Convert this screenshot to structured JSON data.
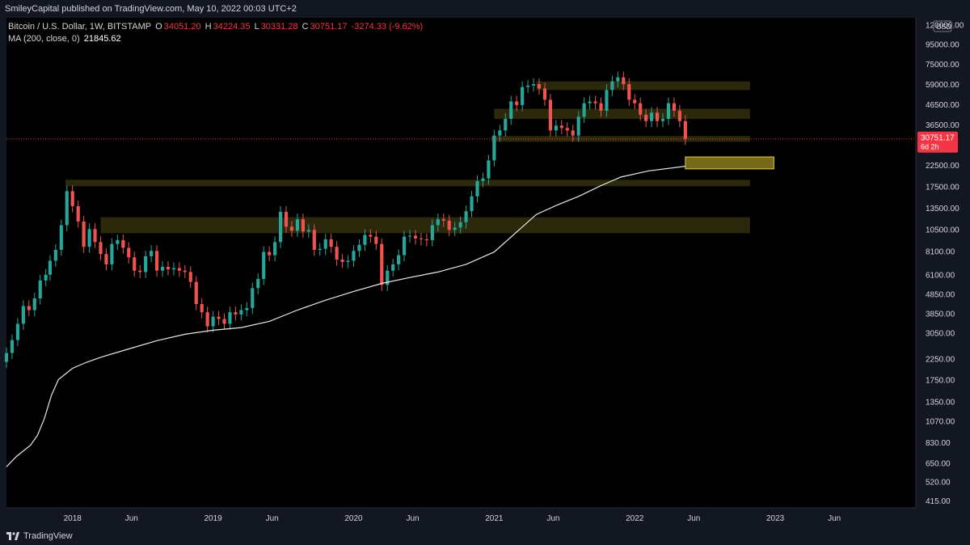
{
  "header": {
    "published": "SmileyCapital published on TradingView.com, May 10, 2022 00:03 UTC+2"
  },
  "legend": {
    "symbol": "Bitcoin / U.S. Dollar, 1W, BITSTAMP",
    "o_label": "O",
    "o": "34051.20",
    "h_label": "H",
    "h": "34224.35",
    "l_label": "L",
    "l": "30331.28",
    "c_label": "C",
    "c": "30751.17",
    "change": "-3274.33 (-9.62%)",
    "ma_label": "MA (200, close, 0)",
    "ma_value": "21845.62"
  },
  "footer": {
    "brand": "TradingView"
  },
  "colors": {
    "background": "#000000",
    "up": "#26a69a",
    "down": "#ef5350",
    "ma": "#e8e8e8",
    "zone": "#3a3510",
    "zone_highlight": "#8a7d1e",
    "price_tag": "#f23645"
  },
  "chart_data": {
    "type": "candlestick",
    "title": "Bitcoin / U.S. Dollar, 1W, BITSTAMP",
    "scale": "log",
    "ylim": [
      380,
      130000
    ],
    "currency": "USD",
    "y_ticks": [
      120000,
      95000,
      75000,
      59000,
      46500,
      36500,
      30751.17,
      22500,
      17500,
      13500,
      10500,
      8100,
      6100,
      4850,
      3850,
      3050,
      2250,
      1750,
      1350,
      1070,
      830,
      650,
      520,
      415
    ],
    "y_tick_labels": [
      "120000.00",
      "95000.00",
      "75000.00",
      "59000.00",
      "46500.00",
      "36500.00",
      "",
      "22500.00",
      "17500.00",
      "13500.00",
      "10500.00",
      "8100.00",
      "6100.00",
      "4850.00",
      "3850.00",
      "3050.00",
      "2250.00",
      "1750.00",
      "1350.00",
      "1070.00",
      "830.00",
      "650.00",
      "520.00",
      "415.00"
    ],
    "x_ticks": [
      {
        "t": 2018.0,
        "label": "2018"
      },
      {
        "t": 2018.42,
        "label": "Jun"
      },
      {
        "t": 2019.0,
        "label": "2019"
      },
      {
        "t": 2019.42,
        "label": "Jun"
      },
      {
        "t": 2020.0,
        "label": "2020"
      },
      {
        "t": 2020.42,
        "label": "Jun"
      },
      {
        "t": 2021.0,
        "label": "2021"
      },
      {
        "t": 2021.42,
        "label": "Jun"
      },
      {
        "t": 2022.0,
        "label": "2022"
      },
      {
        "t": 2022.42,
        "label": "Jun"
      },
      {
        "t": 2023.0,
        "label": "2023"
      },
      {
        "t": 2023.42,
        "label": "Jun"
      }
    ],
    "xlim": [
      2017.53,
      2024.0
    ],
    "last_price": "30751.17",
    "countdown": "6d 2h",
    "ma_series": [
      [
        2017.53,
        620
      ],
      [
        2017.6,
        700
      ],
      [
        2017.7,
        800
      ],
      [
        2017.75,
        900
      ],
      [
        2017.8,
        1100
      ],
      [
        2017.85,
        1450
      ],
      [
        2017.9,
        1750
      ],
      [
        2018.0,
        2000
      ],
      [
        2018.1,
        2150
      ],
      [
        2018.2,
        2280
      ],
      [
        2018.4,
        2520
      ],
      [
        2018.6,
        2780
      ],
      [
        2018.8,
        3000
      ],
      [
        2019.0,
        3150
      ],
      [
        2019.2,
        3250
      ],
      [
        2019.4,
        3500
      ],
      [
        2019.6,
        4000
      ],
      [
        2019.8,
        4500
      ],
      [
        2020.0,
        5000
      ],
      [
        2020.2,
        5500
      ],
      [
        2020.4,
        5900
      ],
      [
        2020.6,
        6300
      ],
      [
        2020.8,
        6900
      ],
      [
        2021.0,
        8000
      ],
      [
        2021.15,
        10000
      ],
      [
        2021.3,
        12500
      ],
      [
        2021.45,
        14000
      ],
      [
        2021.6,
        15500
      ],
      [
        2021.75,
        17500
      ],
      [
        2021.9,
        19500
      ],
      [
        2022.1,
        21000
      ],
      [
        2022.36,
        22200
      ]
    ],
    "zones": [
      {
        "from": 2021.3,
        "to": 2022.82,
        "low": 55000,
        "high": 61000
      },
      {
        "from": 2021.0,
        "to": 2022.82,
        "low": 39000,
        "high": 44000
      },
      {
        "from": 2020.98,
        "to": 2022.82,
        "low": 29700,
        "high": 31800
      },
      {
        "from": 2017.95,
        "to": 2022.82,
        "low": 17500,
        "high": 18900
      },
      {
        "from": 2018.2,
        "to": 2022.82,
        "low": 10000,
        "high": 12100
      },
      {
        "from": 2022.36,
        "to": 2022.99,
        "low": 21500,
        "high": 24800,
        "highlight": true
      }
    ],
    "closes": [
      [
        2017.53,
        2400
      ],
      [
        2017.57,
        2800
      ],
      [
        2017.61,
        3400
      ],
      [
        2017.65,
        4200
      ],
      [
        2017.69,
        4000
      ],
      [
        2017.73,
        4600
      ],
      [
        2017.77,
        5700
      ],
      [
        2017.81,
        6100
      ],
      [
        2017.84,
        7200
      ],
      [
        2017.88,
        8200
      ],
      [
        2017.92,
        11000
      ],
      [
        2017.96,
        16500
      ],
      [
        2018.0,
        13800
      ],
      [
        2018.04,
        11500
      ],
      [
        2018.08,
        8500
      ],
      [
        2018.12,
        10500
      ],
      [
        2018.16,
        9000
      ],
      [
        2018.2,
        7800
      ],
      [
        2018.24,
        6900
      ],
      [
        2018.28,
        8800
      ],
      [
        2018.32,
        9200
      ],
      [
        2018.36,
        8400
      ],
      [
        2018.4,
        7500
      ],
      [
        2018.44,
        6400
      ],
      [
        2018.48,
        6300
      ],
      [
        2018.52,
        7600
      ],
      [
        2018.56,
        8100
      ],
      [
        2018.6,
        6400
      ],
      [
        2018.64,
        6700
      ],
      [
        2018.68,
        6500
      ],
      [
        2018.72,
        6600
      ],
      [
        2018.76,
        6400
      ],
      [
        2018.8,
        6300
      ],
      [
        2018.84,
        5600
      ],
      [
        2018.88,
        4300
      ],
      [
        2018.92,
        3900
      ],
      [
        2018.96,
        3300
      ],
      [
        2019.0,
        3700
      ],
      [
        2019.04,
        3600
      ],
      [
        2019.08,
        3400
      ],
      [
        2019.12,
        3900
      ],
      [
        2019.16,
        3800
      ],
      [
        2019.2,
        4000
      ],
      [
        2019.24,
        4100
      ],
      [
        2019.28,
        5200
      ],
      [
        2019.32,
        5800
      ],
      [
        2019.36,
        8000
      ],
      [
        2019.4,
        7700
      ],
      [
        2019.44,
        9000
      ],
      [
        2019.48,
        12900
      ],
      [
        2019.52,
        10800
      ],
      [
        2019.56,
        10300
      ],
      [
        2019.6,
        11800
      ],
      [
        2019.64,
        10200
      ],
      [
        2019.68,
        10400
      ],
      [
        2019.72,
        8200
      ],
      [
        2019.76,
        8300
      ],
      [
        2019.8,
        9300
      ],
      [
        2019.84,
        8500
      ],
      [
        2019.88,
        7300
      ],
      [
        2019.92,
        7100
      ],
      [
        2019.96,
        7200
      ],
      [
        2020.0,
        8100
      ],
      [
        2020.04,
        8700
      ],
      [
        2020.08,
        9800
      ],
      [
        2020.12,
        9600
      ],
      [
        2020.16,
        8800
      ],
      [
        2020.2,
        5400
      ],
      [
        2020.24,
        6400
      ],
      [
        2020.28,
        6900
      ],
      [
        2020.32,
        7700
      ],
      [
        2020.36,
        9600
      ],
      [
        2020.4,
        9700
      ],
      [
        2020.44,
        9400
      ],
      [
        2020.48,
        9300
      ],
      [
        2020.52,
        9200
      ],
      [
        2020.56,
        11000
      ],
      [
        2020.6,
        11800
      ],
      [
        2020.64,
        11600
      ],
      [
        2020.68,
        10400
      ],
      [
        2020.72,
        10700
      ],
      [
        2020.76,
        11400
      ],
      [
        2020.8,
        13000
      ],
      [
        2020.84,
        15500
      ],
      [
        2020.88,
        18600
      ],
      [
        2020.92,
        19200
      ],
      [
        2020.96,
        23800
      ],
      [
        2021.0,
        32000
      ],
      [
        2021.04,
        34000
      ],
      [
        2021.08,
        39000
      ],
      [
        2021.12,
        48000
      ],
      [
        2021.16,
        46000
      ],
      [
        2021.2,
        57000
      ],
      [
        2021.24,
        58000
      ],
      [
        2021.28,
        59000
      ],
      [
        2021.32,
        56000
      ],
      [
        2021.36,
        49000
      ],
      [
        2021.4,
        34000
      ],
      [
        2021.44,
        36000
      ],
      [
        2021.48,
        35000
      ],
      [
        2021.52,
        34000
      ],
      [
        2021.56,
        32000
      ],
      [
        2021.6,
        40000
      ],
      [
        2021.64,
        47000
      ],
      [
        2021.68,
        48000
      ],
      [
        2021.72,
        47000
      ],
      [
        2021.76,
        43000
      ],
      [
        2021.8,
        55000
      ],
      [
        2021.84,
        61000
      ],
      [
        2021.88,
        64000
      ],
      [
        2021.92,
        59000
      ],
      [
        2021.96,
        49000
      ],
      [
        2022.0,
        47000
      ],
      [
        2022.04,
        41000
      ],
      [
        2022.08,
        38000
      ],
      [
        2022.12,
        42000
      ],
      [
        2022.16,
        38000
      ],
      [
        2022.2,
        39000
      ],
      [
        2022.24,
        47000
      ],
      [
        2022.28,
        43000
      ],
      [
        2022.32,
        38000
      ],
      [
        2022.36,
        30751
      ]
    ]
  }
}
